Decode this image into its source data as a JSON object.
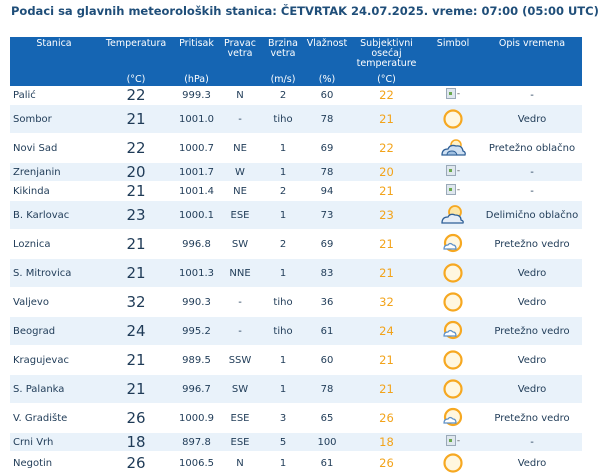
{
  "heading": "Podaci sa glavnih meteoroloških stanica:  ČETVRTAK 24.07.2025.  vreme: 07:00 (05:00 UTC)",
  "headers": {
    "station": "Stanica",
    "temperature": "Temperatura",
    "temperature_unit": "(°C)",
    "pressure": "Pritisak",
    "pressure_unit": "(hPa)",
    "wind_dir": "Pravac vetra",
    "wind_speed": "Brzina vetra",
    "wind_speed_unit": "(m/s)",
    "humidity": "Vlažnost",
    "humidity_unit": "(%)",
    "feels_like": "Subjektivni osećaj temperature",
    "feels_like_unit": "(°C)",
    "symbol": "Simbol",
    "description": "Opis vremena"
  },
  "rows": [
    {
      "station": "Palić",
      "temp": "22",
      "pressure": "999.3",
      "wind_dir": "N",
      "wind_speed": "2",
      "humidity": "60",
      "feels": "22",
      "icon": "broken-image-icon",
      "description": "-"
    },
    {
      "station": "Sombor",
      "temp": "21",
      "pressure": "1001.0",
      "wind_dir": "-",
      "wind_speed": "tiho",
      "humidity": "78",
      "feels": "21",
      "icon": "sun-icon",
      "description": "Vedro"
    },
    {
      "station": "Novi Sad",
      "temp": "22",
      "pressure": "1000.7",
      "wind_dir": "NE",
      "wind_speed": "1",
      "humidity": "69",
      "feels": "22",
      "icon": "cloudy-icon",
      "description": "Pretežno oblačno"
    },
    {
      "station": "Zrenjanin",
      "temp": "20",
      "pressure": "1001.7",
      "wind_dir": "W",
      "wind_speed": "1",
      "humidity": "78",
      "feels": "20",
      "icon": "broken-image-icon",
      "description": "-"
    },
    {
      "station": "Kikinda",
      "temp": "21",
      "pressure": "1001.4",
      "wind_dir": "NE",
      "wind_speed": "2",
      "humidity": "94",
      "feels": "21",
      "icon": "broken-image-icon",
      "description": "-"
    },
    {
      "station": "B. Karlovac",
      "temp": "23",
      "pressure": "1000.1",
      "wind_dir": "ESE",
      "wind_speed": "1",
      "humidity": "73",
      "feels": "23",
      "icon": "partly-cloudy-icon",
      "description": "Delimično oblačno"
    },
    {
      "station": "Loznica",
      "temp": "21",
      "pressure": "996.8",
      "wind_dir": "SW",
      "wind_speed": "2",
      "humidity": "69",
      "feels": "21",
      "icon": "mostly-sunny-icon",
      "description": "Pretežno vedro"
    },
    {
      "station": "S. Mitrovica",
      "temp": "21",
      "pressure": "1001.3",
      "wind_dir": "NNE",
      "wind_speed": "1",
      "humidity": "83",
      "feels": "21",
      "icon": "sun-icon",
      "description": "Vedro"
    },
    {
      "station": "Valjevo",
      "temp": "32",
      "pressure": "990.3",
      "wind_dir": "-",
      "wind_speed": "tiho",
      "humidity": "36",
      "feels": "32",
      "icon": "sun-icon",
      "description": "Vedro"
    },
    {
      "station": "Beograd",
      "temp": "24",
      "pressure": "995.2",
      "wind_dir": "-",
      "wind_speed": "tiho",
      "humidity": "61",
      "feels": "24",
      "icon": "mostly-sunny-icon",
      "description": "Pretežno vedro"
    },
    {
      "station": "Kragujevac",
      "temp": "21",
      "pressure": "989.5",
      "wind_dir": "SSW",
      "wind_speed": "1",
      "humidity": "60",
      "feels": "21",
      "icon": "sun-icon",
      "description": "Vedro"
    },
    {
      "station": "S. Palanka",
      "temp": "21",
      "pressure": "996.7",
      "wind_dir": "SW",
      "wind_speed": "1",
      "humidity": "78",
      "feels": "21",
      "icon": "sun-icon",
      "description": "Vedro"
    },
    {
      "station": "V. Gradište",
      "temp": "26",
      "pressure": "1000.9",
      "wind_dir": "ESE",
      "wind_speed": "3",
      "humidity": "65",
      "feels": "26",
      "icon": "mostly-sunny-icon",
      "description": "Pretežno vedro"
    },
    {
      "station": "Crni Vrh",
      "temp": "18",
      "pressure": "897.8",
      "wind_dir": "ESE",
      "wind_speed": "5",
      "humidity": "100",
      "feels": "18",
      "icon": "broken-image-icon",
      "description": "-"
    },
    {
      "station": "Negotin",
      "temp": "26",
      "pressure": "1006.5",
      "wind_dir": "N",
      "wind_speed": "1",
      "humidity": "61",
      "feels": "26",
      "icon": "sun-icon",
      "description": "Vedro"
    }
  ],
  "colors": {
    "header_bg": "#1565b3",
    "row_alt_bg": "#e9f2fa",
    "feels_like_text": "#f2a31a",
    "sun": "#f6a821",
    "cloud": "#5b8fc7"
  }
}
